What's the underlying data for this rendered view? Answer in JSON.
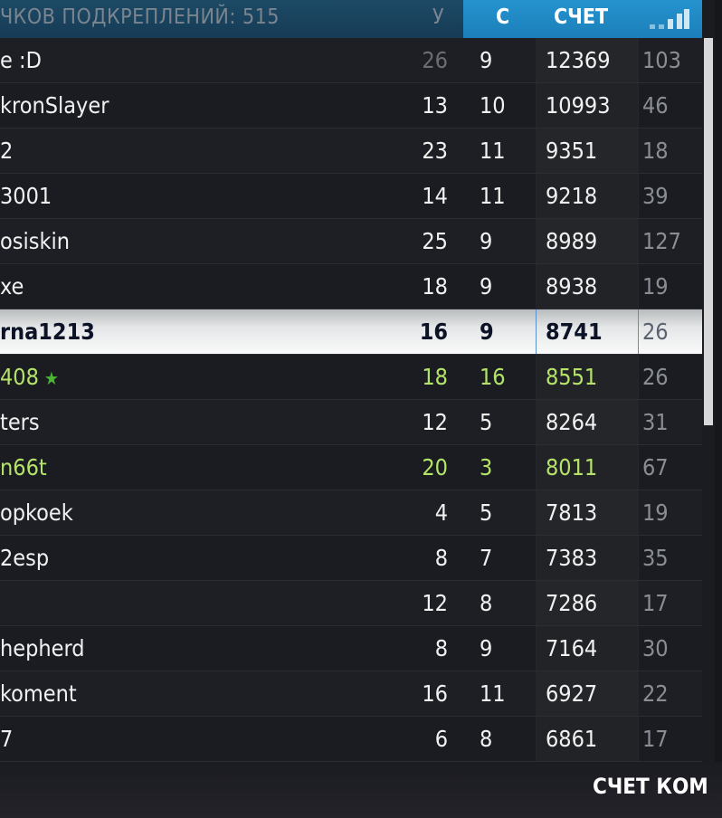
{
  "header": {
    "title": "ЧКОВ ПОДКРЕПЛЕНИЙ: 515",
    "kills_label": "У",
    "deaths_label": "С",
    "score_label": "СЧЕТ",
    "ping_icon": "signal-bars-icon",
    "accent_color": "#2593cf"
  },
  "rows": [
    {
      "name": "e :D",
      "kills": "26",
      "deaths": "9",
      "score": "12369",
      "ping": "103"
    },
    {
      "name": "kronSlayer",
      "kills": "13",
      "deaths": "10",
      "score": "10993",
      "ping": "46"
    },
    {
      "name": "2",
      "kills": "23",
      "deaths": "11",
      "score": "9351",
      "ping": "18"
    },
    {
      "name": "3001",
      "kills": "14",
      "deaths": "11",
      "score": "9218",
      "ping": "39"
    },
    {
      "name": "osiskin",
      "kills": "25",
      "deaths": "9",
      "score": "8989",
      "ping": "127"
    },
    {
      "name": "xe",
      "kills": "18",
      "deaths": "9",
      "score": "8938",
      "ping": "19"
    },
    {
      "name": "rna1213",
      "kills": "16",
      "deaths": "9",
      "score": "8741",
      "ping": "26",
      "highlighted": true
    },
    {
      "name": "408",
      "kills": "18",
      "deaths": "16",
      "score": "8551",
      "ping": "26",
      "squad": true,
      "star": "★"
    },
    {
      "name": "ters",
      "kills": "12",
      "deaths": "5",
      "score": "8264",
      "ping": "31"
    },
    {
      "name": "n66t",
      "kills": "20",
      "deaths": "3",
      "score": "8011",
      "ping": "67",
      "squad": true
    },
    {
      "name": "opkoek",
      "kills": "4",
      "deaths": "5",
      "score": "7813",
      "ping": "19"
    },
    {
      "name": "2esp",
      "kills": "8",
      "deaths": "7",
      "score": "7383",
      "ping": "35"
    },
    {
      "name": "",
      "kills": "12",
      "deaths": "8",
      "score": "7286",
      "ping": "17"
    },
    {
      "name": "hepherd",
      "kills": "8",
      "deaths": "9",
      "score": "7164",
      "ping": "30"
    },
    {
      "name": "koment",
      "kills": "16",
      "deaths": "11",
      "score": "6927",
      "ping": "22"
    },
    {
      "name": "7",
      "kills": "6",
      "deaths": "8",
      "score": "6861",
      "ping": "17"
    }
  ],
  "footer": {
    "team_score_label": "СЧЕТ КОМ"
  }
}
